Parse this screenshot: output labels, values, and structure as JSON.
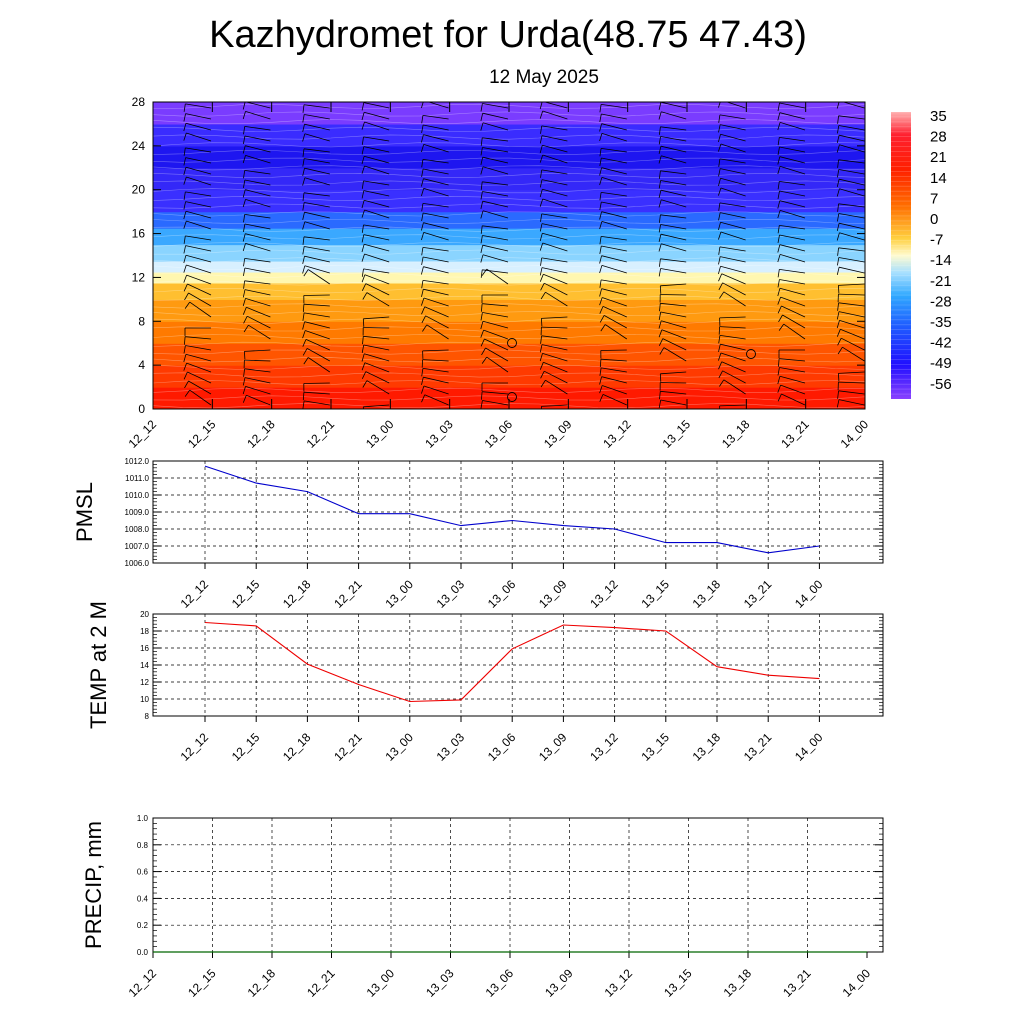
{
  "header": {
    "title": "Kazhydromet for Urda(48.75 47.43)",
    "date": "12 May 2025"
  },
  "time_labels": [
    "12_12",
    "12_15",
    "12_18",
    "12_21",
    "13_00",
    "13_03",
    "13_06",
    "13_09",
    "13_12",
    "13_15",
    "13_18",
    "13_21",
    "14_00"
  ],
  "chart_data": [
    {
      "type": "heatmap",
      "name_hint": "temperature cross-section with wind barbs",
      "x": [
        "12_12",
        "12_15",
        "12_18",
        "12_21",
        "13_00",
        "13_03",
        "13_06",
        "13_09",
        "13_12",
        "13_15",
        "13_18",
        "13_21",
        "14_00"
      ],
      "ylim": [
        0,
        28
      ],
      "yticks": [
        0,
        4,
        8,
        12,
        16,
        20,
        24,
        28
      ],
      "colorbar": {
        "labels": [
          "35",
          "28",
          "21",
          "14",
          "7",
          "0",
          "-7",
          "-14",
          "-21",
          "-28",
          "-35",
          "-42",
          "-49",
          "-56"
        ]
      },
      "layers": [
        {
          "y_from": 0,
          "y_to": 2,
          "color": "#ff1a00"
        },
        {
          "y_from": 2,
          "y_to": 4,
          "color": "#ff3a00"
        },
        {
          "y_from": 4,
          "y_to": 6,
          "color": "#ff5500"
        },
        {
          "y_from": 6,
          "y_to": 8,
          "color": "#ff7a00"
        },
        {
          "y_from": 8,
          "y_to": 10,
          "color": "#ff9a10"
        },
        {
          "y_from": 10,
          "y_to": 11.5,
          "color": "#ffbf30"
        },
        {
          "y_from": 11.5,
          "y_to": 12.5,
          "color": "#fff7b0"
        },
        {
          "y_from": 12.5,
          "y_to": 13.5,
          "color": "#d8f0ff"
        },
        {
          "y_from": 13.5,
          "y_to": 15,
          "color": "#8ad4ff"
        },
        {
          "y_from": 15,
          "y_to": 16.5,
          "color": "#3aa8ff"
        },
        {
          "y_from": 16.5,
          "y_to": 18,
          "color": "#2a6aff"
        },
        {
          "y_from": 18,
          "y_to": 20,
          "color": "#3a30ff"
        },
        {
          "y_from": 20,
          "y_to": 22,
          "color": "#3428f8"
        },
        {
          "y_from": 22,
          "y_to": 24,
          "color": "#1e16f0"
        },
        {
          "y_from": 24,
          "y_to": 26,
          "color": "#3a2cff"
        },
        {
          "y_from": 26,
          "y_to": 28,
          "color": "#7a3cff"
        }
      ]
    },
    {
      "type": "line",
      "ylabel": "PMSL",
      "x": [
        "12_12",
        "12_15",
        "12_18",
        "12_21",
        "13_00",
        "13_03",
        "13_06",
        "13_09",
        "13_12",
        "13_15",
        "13_18",
        "13_21",
        "14_00"
      ],
      "ylim": [
        1006,
        1012
      ],
      "yticks": [
        "1006.0",
        "1007.0",
        "1008.0",
        "1009.0",
        "1010.0",
        "1011.0",
        "1012.0"
      ],
      "series": [
        {
          "values": [
            1011.7,
            1010.7,
            1010.2,
            1008.9,
            1008.9,
            1008.2,
            1008.5,
            1008.2,
            1008.0,
            1007.2,
            1007.2,
            1006.6,
            1007.0
          ],
          "color": "#0000cc"
        }
      ]
    },
    {
      "type": "line",
      "ylabel": "TEMP at 2 M",
      "x": [
        "12_12",
        "12_15",
        "12_18",
        "12_21",
        "13_00",
        "13_03",
        "13_06",
        "13_09",
        "13_12",
        "13_15",
        "13_18",
        "13_21",
        "14_00"
      ],
      "ylim": [
        8,
        20
      ],
      "yticks": [
        "8",
        "10",
        "12",
        "14",
        "16",
        "18",
        "20"
      ],
      "series": [
        {
          "values": [
            19.0,
            18.6,
            14.1,
            11.7,
            9.7,
            9.9,
            15.9,
            18.7,
            18.4,
            18.0,
            13.8,
            12.8,
            12.4
          ],
          "color": "#ee0000"
        }
      ]
    },
    {
      "type": "line",
      "ylabel": "PRECIP, mm",
      "x": [
        "12_12",
        "12_15",
        "12_18",
        "12_21",
        "13_00",
        "13_03",
        "13_06",
        "13_09",
        "13_12",
        "13_15",
        "13_18",
        "13_21",
        "14_00"
      ],
      "ylim": [
        0,
        1
      ],
      "yticks": [
        "0.0",
        "0.2",
        "0.4",
        "0.6",
        "0.8",
        "1.0"
      ],
      "series": [
        {
          "values": [
            0,
            0,
            0,
            0,
            0,
            0,
            0,
            0,
            0,
            0,
            0,
            0,
            0
          ],
          "color": "#006600"
        }
      ]
    }
  ]
}
